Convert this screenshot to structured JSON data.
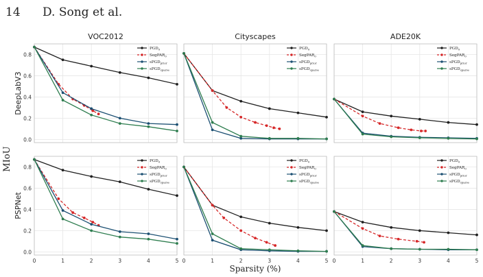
{
  "header": {
    "page_number": "14",
    "authors": "D. Song et al."
  },
  "figure": {
    "ylabel": "MIoU",
    "xlabel": "Sparsity (%)",
    "columns": [
      "VOC2012",
      "Cityscapes",
      "ADE20K"
    ],
    "rows": [
      "DeepLabV3",
      "PSPNet"
    ]
  },
  "legend": [
    {
      "key": "pgd",
      "base": "PGD",
      "sub": "0",
      "color": "#1f1f1f",
      "dashed": false
    },
    {
      "key": "segpgd",
      "base": "SegPAR",
      "sub": "0",
      "color": "#d62728",
      "dashed": true
    },
    {
      "key": "spgd_prior",
      "base": "sPGD",
      "sub": "prior",
      "color": "#1b4f72",
      "dashed": false
    },
    {
      "key": "spgd_latent",
      "base": "sPGD",
      "sub": "sparse",
      "color": "#2e7d4f",
      "dashed": false
    }
  ],
  "axes": {
    "xticks": [
      "0",
      "1",
      "2",
      "3",
      "4",
      "5"
    ],
    "yticks": [
      "0.0",
      "0.2",
      "0.4",
      "0.6",
      "0.8"
    ],
    "xlim": [
      0,
      5
    ],
    "ylim": [
      -0.03,
      0.9
    ]
  },
  "chart_data": [
    {
      "type": "line",
      "column": "VOC2012",
      "row": "DeepLabV3",
      "series": [
        {
          "key": "pgd",
          "x": [
            0,
            1,
            2,
            3,
            4,
            5
          ],
          "y": [
            0.87,
            0.75,
            0.69,
            0.63,
            0.58,
            0.52
          ]
        },
        {
          "key": "segpgd",
          "x": [
            0,
            0.85,
            1.35,
            1.75,
            2.05,
            2.25
          ],
          "y": [
            0.87,
            0.52,
            0.38,
            0.32,
            0.27,
            0.24
          ]
        },
        {
          "key": "spgd_prior",
          "x": [
            0,
            1,
            2,
            3,
            4,
            5
          ],
          "y": [
            0.87,
            0.44,
            0.29,
            0.2,
            0.15,
            0.14
          ]
        },
        {
          "key": "spgd_latent",
          "x": [
            0,
            1,
            2,
            3,
            4,
            5
          ],
          "y": [
            0.87,
            0.37,
            0.23,
            0.15,
            0.12,
            0.08
          ]
        }
      ]
    },
    {
      "type": "line",
      "column": "Cityscapes",
      "row": "DeepLabV3",
      "series": [
        {
          "key": "pgd",
          "x": [
            0,
            1,
            2,
            3,
            4,
            5
          ],
          "y": [
            0.81,
            0.46,
            0.36,
            0.29,
            0.25,
            0.21
          ]
        },
        {
          "key": "segpgd",
          "x": [
            0,
            1,
            1.5,
            2,
            2.5,
            2.9,
            3.15,
            3.35
          ],
          "y": [
            0.81,
            0.46,
            0.3,
            0.21,
            0.16,
            0.13,
            0.11,
            0.1
          ]
        },
        {
          "key": "spgd_prior",
          "x": [
            0,
            1,
            2,
            3,
            4,
            5
          ],
          "y": [
            0.81,
            0.09,
            0.01,
            0.005,
            0.005,
            0.005
          ]
        },
        {
          "key": "spgd_latent",
          "x": [
            0,
            1,
            2,
            3,
            4,
            5
          ],
          "y": [
            0.81,
            0.16,
            0.03,
            0.01,
            0.01,
            0.005
          ]
        }
      ]
    },
    {
      "type": "line",
      "column": "ADE20K",
      "row": "DeepLabV3",
      "series": [
        {
          "key": "pgd",
          "x": [
            0,
            1,
            2,
            3,
            4,
            5
          ],
          "y": [
            0.38,
            0.26,
            0.22,
            0.19,
            0.16,
            0.14
          ]
        },
        {
          "key": "segpgd",
          "x": [
            0,
            1,
            1.6,
            2.25,
            2.7,
            3.05,
            3.2
          ],
          "y": [
            0.38,
            0.22,
            0.15,
            0.11,
            0.09,
            0.08,
            0.08
          ]
        },
        {
          "key": "spgd_prior",
          "x": [
            0,
            1,
            2,
            3,
            4,
            5
          ],
          "y": [
            0.38,
            0.06,
            0.03,
            0.02,
            0.015,
            0.01
          ]
        },
        {
          "key": "spgd_latent",
          "x": [
            0,
            1,
            2,
            3,
            4,
            5
          ],
          "y": [
            0.38,
            0.05,
            0.025,
            0.015,
            0.01,
            0.005
          ]
        }
      ]
    },
    {
      "type": "line",
      "column": "VOC2012",
      "row": "PSPNet",
      "series": [
        {
          "key": "pgd",
          "x": [
            0,
            1,
            2,
            3,
            4,
            5
          ],
          "y": [
            0.87,
            0.77,
            0.71,
            0.66,
            0.59,
            0.53
          ]
        },
        {
          "key": "segpgd",
          "x": [
            0,
            0.85,
            1.35,
            1.75,
            2.05,
            2.25
          ],
          "y": [
            0.87,
            0.5,
            0.37,
            0.32,
            0.28,
            0.25
          ]
        },
        {
          "key": "spgd_prior",
          "x": [
            0,
            1,
            2,
            3,
            4,
            5
          ],
          "y": [
            0.87,
            0.39,
            0.26,
            0.19,
            0.17,
            0.12
          ]
        },
        {
          "key": "spgd_latent",
          "x": [
            0,
            1,
            2,
            3,
            4,
            5
          ],
          "y": [
            0.87,
            0.31,
            0.2,
            0.14,
            0.12,
            0.08
          ]
        }
      ]
    },
    {
      "type": "line",
      "column": "Cityscapes",
      "row": "PSPNet",
      "series": [
        {
          "key": "pgd",
          "x": [
            0,
            1,
            2,
            3,
            4,
            5
          ],
          "y": [
            0.8,
            0.44,
            0.33,
            0.27,
            0.23,
            0.2
          ]
        },
        {
          "key": "segpgd",
          "x": [
            0,
            1,
            1.4,
            2,
            2.5,
            2.9,
            3.2
          ],
          "y": [
            0.8,
            0.44,
            0.32,
            0.2,
            0.13,
            0.09,
            0.06
          ]
        },
        {
          "key": "spgd_prior",
          "x": [
            0,
            1,
            2,
            3,
            4,
            5
          ],
          "y": [
            0.8,
            0.11,
            0.02,
            0.01,
            0.005,
            0.005
          ]
        },
        {
          "key": "spgd_latent",
          "x": [
            0,
            1,
            2,
            3,
            4,
            5
          ],
          "y": [
            0.8,
            0.17,
            0.03,
            0.02,
            0.01,
            0.005
          ]
        }
      ]
    },
    {
      "type": "line",
      "column": "ADE20K",
      "row": "PSPNet",
      "series": [
        {
          "key": "pgd",
          "x": [
            0,
            1,
            2,
            3,
            4,
            5
          ],
          "y": [
            0.38,
            0.28,
            0.23,
            0.2,
            0.18,
            0.16
          ]
        },
        {
          "key": "segpgd",
          "x": [
            0,
            1,
            1.6,
            2.25,
            2.9,
            3.15
          ],
          "y": [
            0.38,
            0.22,
            0.15,
            0.12,
            0.1,
            0.09
          ]
        },
        {
          "key": "spgd_prior",
          "x": [
            0,
            1,
            2,
            3,
            4,
            5
          ],
          "y": [
            0.38,
            0.05,
            0.03,
            0.025,
            0.02,
            0.02
          ]
        },
        {
          "key": "spgd_latent",
          "x": [
            0,
            1,
            2,
            3,
            4,
            5
          ],
          "y": [
            0.38,
            0.06,
            0.03,
            0.025,
            0.025,
            0.02
          ]
        }
      ]
    }
  ]
}
